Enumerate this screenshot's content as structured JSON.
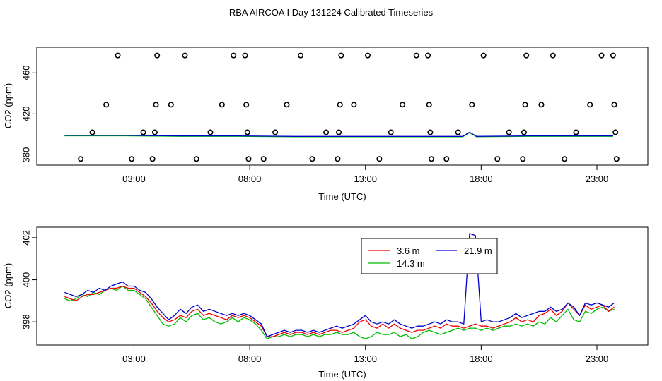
{
  "title": "RBA AIRCOA I  Day 131224  Calibrated Timeseries",
  "chart_data": [
    {
      "type": "scatter",
      "xlabel": "Time (UTC)",
      "ylabel": "CO2 (ppm)",
      "x_ticks": [
        {
          "x": 3,
          "label": "03:00"
        },
        {
          "x": 8,
          "label": "08:00"
        },
        {
          "x": 13,
          "label": "13:00"
        },
        {
          "x": 18,
          "label": "18:00"
        },
        {
          "x": 23,
          "label": "23:00"
        }
      ],
      "y_ticks": [
        380,
        420,
        460
      ],
      "xlim": [
        -1.2,
        25.2
      ],
      "ylim": [
        370,
        485
      ],
      "points": [
        {
          "x": 0.7,
          "y": 376
        },
        {
          "x": 1.2,
          "y": 402
        },
        {
          "x": 1.8,
          "y": 429
        },
        {
          "x": 2.3,
          "y": 477
        },
        {
          "x": 2.9,
          "y": 376
        },
        {
          "x": 3.4,
          "y": 402
        },
        {
          "x": 3.8,
          "y": 376
        },
        {
          "x": 3.9,
          "y": 402
        },
        {
          "x": 3.95,
          "y": 429
        },
        {
          "x": 4.0,
          "y": 477
        },
        {
          "x": 4.6,
          "y": 429
        },
        {
          "x": 5.2,
          "y": 477
        },
        {
          "x": 5.7,
          "y": 376
        },
        {
          "x": 6.3,
          "y": 402
        },
        {
          "x": 6.8,
          "y": 429
        },
        {
          "x": 7.3,
          "y": 477
        },
        {
          "x": 7.8,
          "y": 477
        },
        {
          "x": 7.85,
          "y": 429
        },
        {
          "x": 7.9,
          "y": 402
        },
        {
          "x": 7.95,
          "y": 376
        },
        {
          "x": 8.6,
          "y": 376
        },
        {
          "x": 9.1,
          "y": 402
        },
        {
          "x": 9.6,
          "y": 429
        },
        {
          "x": 10.2,
          "y": 477
        },
        {
          "x": 10.7,
          "y": 376
        },
        {
          "x": 11.3,
          "y": 402
        },
        {
          "x": 11.8,
          "y": 376
        },
        {
          "x": 11.85,
          "y": 402
        },
        {
          "x": 11.9,
          "y": 429
        },
        {
          "x": 11.95,
          "y": 477
        },
        {
          "x": 12.5,
          "y": 429
        },
        {
          "x": 13.1,
          "y": 477
        },
        {
          "x": 13.6,
          "y": 376
        },
        {
          "x": 14.1,
          "y": 402
        },
        {
          "x": 14.6,
          "y": 429
        },
        {
          "x": 15.2,
          "y": 477
        },
        {
          "x": 15.7,
          "y": 477
        },
        {
          "x": 15.75,
          "y": 429
        },
        {
          "x": 15.8,
          "y": 402
        },
        {
          "x": 15.85,
          "y": 376
        },
        {
          "x": 16.5,
          "y": 376
        },
        {
          "x": 17.0,
          "y": 402
        },
        {
          "x": 17.6,
          "y": 429
        },
        {
          "x": 18.1,
          "y": 477
        },
        {
          "x": 18.7,
          "y": 376
        },
        {
          "x": 19.2,
          "y": 402
        },
        {
          "x": 19.8,
          "y": 376
        },
        {
          "x": 19.85,
          "y": 402
        },
        {
          "x": 19.9,
          "y": 429
        },
        {
          "x": 19.95,
          "y": 477
        },
        {
          "x": 20.6,
          "y": 429
        },
        {
          "x": 21.1,
          "y": 477
        },
        {
          "x": 21.6,
          "y": 376
        },
        {
          "x": 22.1,
          "y": 402
        },
        {
          "x": 22.7,
          "y": 429
        },
        {
          "x": 23.2,
          "y": 477
        },
        {
          "x": 23.7,
          "y": 477
        },
        {
          "x": 23.75,
          "y": 429
        },
        {
          "x": 23.8,
          "y": 402
        },
        {
          "x": 23.85,
          "y": 376
        }
      ],
      "line_x": [
        0.0,
        2.5,
        5.0,
        7.5,
        10.0,
        12.5,
        15.0,
        16.5,
        17.2,
        17.5,
        17.8,
        20.0,
        22.5,
        23.7
      ],
      "line_y": [
        399,
        399,
        398.5,
        398.5,
        398,
        398,
        398,
        398,
        398,
        402,
        398,
        398.5,
        398.5,
        398.5
      ],
      "line_colors": [
        "#00cc00",
        "#0000cc"
      ]
    },
    {
      "type": "line",
      "xlabel": "Time (UTC)",
      "ylabel": "CO2 (ppm)",
      "x_ticks": [
        {
          "x": 3,
          "label": "03:00"
        },
        {
          "x": 8,
          "label": "08:00"
        },
        {
          "x": 13,
          "label": "13:00"
        },
        {
          "x": 18,
          "label": "18:00"
        },
        {
          "x": 23,
          "label": "23:00"
        }
      ],
      "y_ticks": [
        398,
        400,
        402
      ],
      "xlim": [
        -1.2,
        25.2
      ],
      "ylim": [
        396.9,
        402.5
      ],
      "legend": {
        "placement": "top-center"
      },
      "x": [
        0.0,
        0.25,
        0.5,
        0.75,
        1.0,
        1.25,
        1.5,
        1.75,
        2.0,
        2.25,
        2.5,
        2.75,
        3.0,
        3.25,
        3.5,
        3.75,
        4.0,
        4.25,
        4.5,
        4.75,
        5.0,
        5.25,
        5.5,
        5.75,
        6.0,
        6.25,
        6.5,
        6.75,
        7.0,
        7.25,
        7.5,
        7.75,
        8.0,
        8.25,
        8.5,
        8.75,
        9.0,
        9.25,
        9.5,
        9.75,
        10.0,
        10.25,
        10.5,
        10.75,
        11.0,
        11.25,
        11.5,
        11.75,
        12.0,
        12.25,
        12.5,
        12.75,
        13.0,
        13.25,
        13.5,
        13.75,
        14.0,
        14.25,
        14.5,
        14.75,
        15.0,
        15.25,
        15.5,
        15.75,
        16.0,
        16.25,
        16.5,
        16.75,
        17.0,
        17.25,
        17.5,
        17.75,
        18.0,
        18.25,
        18.5,
        18.75,
        19.0,
        19.25,
        19.5,
        19.75,
        20.0,
        20.25,
        20.5,
        20.75,
        21.0,
        21.25,
        21.5,
        21.75,
        22.0,
        22.25,
        22.5,
        22.75,
        23.0,
        23.25,
        23.5,
        23.75
      ],
      "series": [
        {
          "name": "3.6 m",
          "color": "#ee0000",
          "values": [
            399.2,
            399.1,
            399.0,
            399.2,
            399.3,
            399.3,
            399.4,
            399.5,
            399.6,
            399.6,
            399.7,
            399.6,
            399.6,
            399.4,
            399.2,
            398.9,
            398.5,
            398.2,
            398.0,
            398.1,
            398.3,
            398.2,
            398.5,
            398.6,
            398.3,
            398.4,
            398.3,
            398.2,
            398.1,
            398.3,
            398.2,
            398.3,
            398.2,
            398.0,
            397.8,
            397.3,
            397.3,
            397.4,
            397.5,
            397.4,
            397.5,
            397.5,
            397.4,
            397.5,
            397.4,
            397.5,
            397.6,
            397.6,
            397.5,
            397.6,
            397.7,
            398.0,
            398.1,
            397.8,
            397.7,
            397.9,
            397.7,
            397.9,
            397.7,
            397.6,
            397.5,
            397.6,
            397.6,
            397.7,
            397.8,
            397.7,
            397.9,
            397.8,
            397.8,
            397.7,
            397.8,
            397.9,
            397.8,
            397.8,
            397.7,
            397.8,
            397.9,
            398.0,
            398.2,
            398.0,
            398.1,
            398.0,
            398.3,
            398.4,
            398.6,
            398.3,
            398.5,
            398.9,
            398.6,
            398.3,
            398.8,
            398.6,
            398.7,
            398.8,
            398.5,
            398.7
          ]
        },
        {
          "name": "14.3 m",
          "color": "#00bb00",
          "values": [
            399.1,
            399.0,
            399.1,
            399.3,
            399.2,
            399.4,
            399.3,
            399.5,
            399.6,
            399.5,
            399.7,
            399.5,
            399.5,
            399.3,
            399.1,
            398.7,
            398.3,
            397.9,
            397.8,
            397.9,
            398.2,
            398.0,
            398.3,
            398.4,
            398.1,
            398.2,
            398.0,
            397.9,
            398.0,
            398.2,
            398.0,
            398.2,
            398.1,
            397.9,
            397.6,
            397.2,
            397.3,
            397.3,
            397.4,
            397.3,
            397.4,
            397.4,
            397.3,
            397.4,
            397.3,
            397.4,
            397.4,
            397.5,
            397.4,
            397.4,
            397.5,
            397.3,
            397.2,
            397.3,
            397.5,
            397.4,
            397.4,
            397.5,
            397.3,
            397.4,
            397.2,
            397.3,
            397.5,
            397.6,
            397.5,
            397.4,
            397.5,
            397.6,
            397.7,
            397.6,
            397.7,
            397.7,
            397.6,
            397.7,
            397.6,
            397.7,
            397.8,
            397.8,
            397.9,
            397.8,
            397.9,
            397.8,
            398.0,
            397.9,
            398.2,
            398.0,
            398.3,
            398.6,
            398.1,
            398.0,
            398.5,
            398.4,
            398.6,
            398.7,
            398.5,
            398.6
          ]
        },
        {
          "name": "21.9 m",
          "color": "#0000cc",
          "values": [
            399.4,
            399.3,
            399.2,
            399.3,
            399.5,
            399.4,
            399.6,
            399.5,
            399.7,
            399.8,
            399.9,
            399.7,
            399.7,
            399.5,
            399.4,
            399.1,
            398.7,
            398.4,
            398.1,
            398.3,
            398.6,
            398.4,
            398.7,
            398.8,
            398.5,
            398.6,
            398.5,
            398.4,
            398.3,
            398.4,
            398.3,
            398.4,
            398.3,
            398.1,
            397.9,
            397.3,
            397.4,
            397.5,
            397.6,
            397.5,
            397.6,
            397.6,
            397.5,
            397.6,
            397.5,
            397.6,
            397.7,
            397.8,
            397.7,
            397.8,
            397.9,
            398.1,
            398.3,
            398.0,
            397.9,
            398.0,
            397.9,
            398.1,
            397.9,
            397.8,
            397.7,
            397.8,
            397.8,
            397.9,
            398.0,
            397.9,
            398.1,
            398.0,
            398.0,
            397.9,
            402.2,
            402.1,
            398.0,
            398.1,
            398.0,
            398.0,
            398.1,
            398.2,
            398.4,
            398.2,
            398.3,
            398.4,
            398.5,
            398.5,
            398.7,
            398.5,
            398.6,
            398.9,
            398.7,
            398.3,
            398.9,
            398.8,
            398.9,
            398.8,
            398.7,
            398.9
          ]
        }
      ]
    }
  ]
}
